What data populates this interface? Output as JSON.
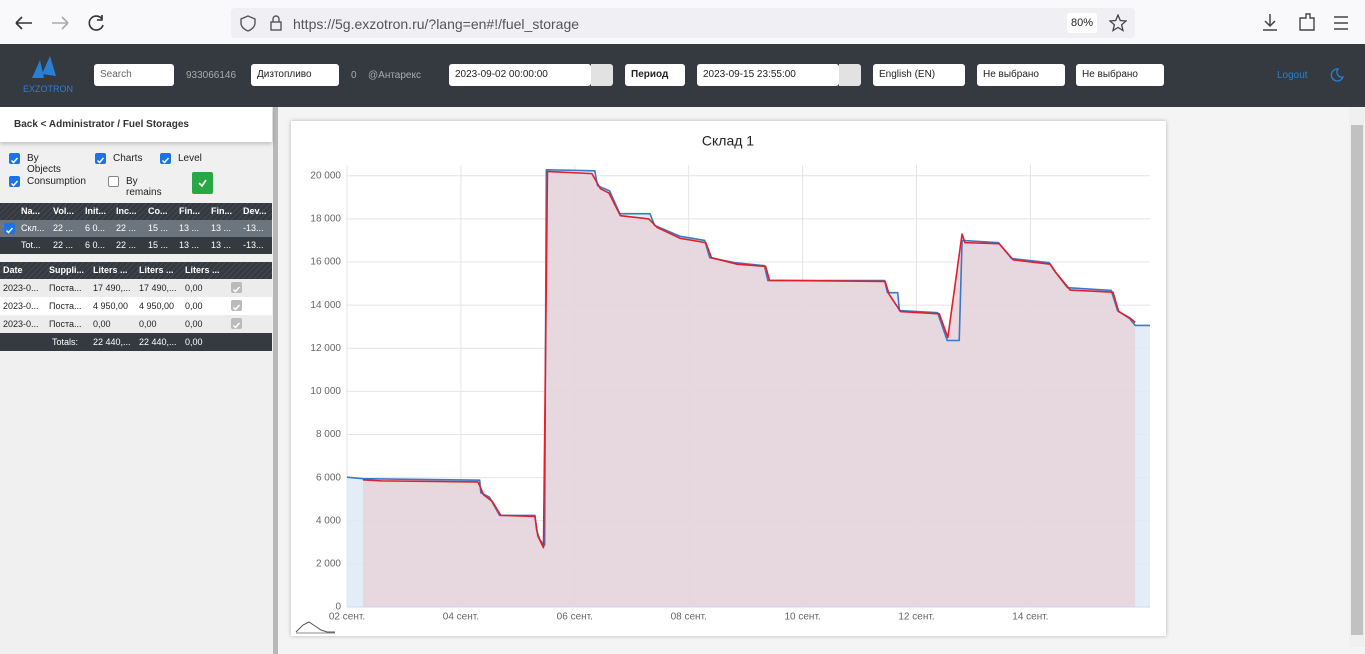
{
  "browser": {
    "url": "https://5g.exzotron.ru/?lang=en#!/fuel_storage",
    "zoom": "80%"
  },
  "navbar": {
    "logo": "EXZOTRON",
    "search_placeholder": "Search",
    "account": "933066146",
    "fuel_select": "Дизтопливо",
    "count": "0",
    "company": "@Антарекс",
    "date_from": "2023-09-02 00:00:00",
    "period": "Период",
    "date_to": "2023-09-15 23:55:00",
    "language": "English (EN)",
    "select1": "Не выбрано",
    "select2": "Не выбрано",
    "logout": "Logout"
  },
  "sidebar": {
    "breadcrumb": "Back < Administrator / Fuel Storages",
    "options": [
      {
        "label": "By Objects",
        "checked": true
      },
      {
        "label": "Charts",
        "checked": true
      },
      {
        "label": "Level",
        "checked": true
      },
      {
        "label": "Consumption",
        "checked": true
      },
      {
        "label": "By remains",
        "checked": false
      }
    ],
    "table1": {
      "headers": [
        "Na...",
        "Vol...",
        "Init...",
        "Inc...",
        "Co...",
        "Fin...",
        "Fin...",
        "Dev..."
      ],
      "rows": [
        [
          "Скл...",
          "22 ...",
          "6 0...",
          "22 ...",
          "15 ...",
          "13 ...",
          "13 ...",
          "-13..."
        ]
      ],
      "totals": [
        "Tot...",
        "22 ...",
        "6 0...",
        "22 ...",
        "15 ...",
        "13 ...",
        "13 ...",
        "-13..."
      ]
    },
    "table2": {
      "headers": [
        "Date",
        "Suppli...",
        "Liters ...",
        "Liters ...",
        "Liters ..."
      ],
      "rows": [
        [
          "2023-0...",
          "Поста...",
          "17 490,...",
          "17 490,...",
          "0,00"
        ],
        [
          "2023-0...",
          "Поста...",
          "4 950,00",
          "4 950,00",
          "0,00"
        ],
        [
          "2023-0...",
          "Поста...",
          "0,00",
          "0,00",
          "0,00"
        ]
      ],
      "totals": [
        "Totals:",
        "22 440,...",
        "22 440,...",
        "0,00"
      ]
    }
  },
  "chart_data": {
    "type": "area",
    "title": "Склад 1",
    "xlim": [
      2,
      16.1
    ],
    "xticks": [
      {
        "value": 2,
        "label": "02 сент."
      },
      {
        "value": 4,
        "label": "04 сент."
      },
      {
        "value": 6,
        "label": "06 сент."
      },
      {
        "value": 8,
        "label": "08 сент."
      },
      {
        "value": 10,
        "label": "10 сент."
      },
      {
        "value": 12,
        "label": "12 сент."
      },
      {
        "value": 14,
        "label": "14 сент."
      }
    ],
    "ylim": [
      0,
      20500
    ],
    "yticks": [
      0,
      {
        "value": 2000,
        "label": "2 000"
      },
      {
        "value": 4000,
        "label": "4 000"
      },
      {
        "value": 6000,
        "label": "6 000"
      },
      {
        "value": 8000,
        "label": "8 000"
      },
      {
        "value": 10000,
        "label": "10 000"
      },
      {
        "value": 12000,
        "label": "12 000"
      },
      {
        "value": 14000,
        "label": "14 000"
      },
      {
        "value": 16000,
        "label": "16 000"
      },
      {
        "value": 18000,
        "label": "18 000"
      },
      {
        "value": 20000,
        "label": "20 000"
      }
    ],
    "grid": true,
    "series": [
      {
        "color": "#3a78c9",
        "fill": "#deeaf7",
        "x": [
          2.0,
          2.28,
          4.33,
          4.35,
          4.5,
          4.68,
          5.3,
          5.33,
          5.39,
          5.47,
          5.5,
          6.35,
          6.4,
          6.61,
          6.79,
          7.32,
          7.4,
          7.84,
          8.28,
          8.37,
          8.81,
          9.33,
          9.39,
          11.44,
          11.49,
          11.67,
          11.7,
          12.37,
          12.54,
          12.75,
          12.8,
          13.44,
          13.67,
          14.33,
          14.42,
          14.65,
          15.42,
          15.53,
          15.74,
          15.84,
          16.1
        ],
        "values": [
          6020,
          5950,
          5880,
          5300,
          5100,
          4250,
          4250,
          3560,
          3100,
          2870,
          20280,
          20230,
          19540,
          19300,
          18240,
          18240,
          17700,
          17200,
          17000,
          16200,
          15970,
          15830,
          15140,
          15140,
          14580,
          14580,
          13750,
          13650,
          12360,
          12360,
          17000,
          16900,
          16160,
          15970,
          15600,
          14810,
          14680,
          13750,
          13380,
          13060,
          13060
        ]
      },
      {
        "color": "#e0202a",
        "fill": "#e8d2d9",
        "x": [
          2.28,
          2.6,
          4.3,
          4.4,
          4.55,
          4.7,
          5.3,
          5.35,
          5.45,
          5.52,
          6.3,
          6.45,
          6.6,
          6.8,
          7.3,
          7.45,
          7.85,
          8.3,
          8.4,
          8.85,
          9.35,
          9.42,
          11.45,
          11.52,
          11.72,
          12.4,
          12.55,
          12.8,
          12.85,
          13.45,
          13.7,
          14.35,
          14.45,
          14.7,
          15.45,
          15.55,
          15.75,
          15.84
        ],
        "values": [
          5900,
          5850,
          5800,
          5200,
          4900,
          4250,
          4200,
          3300,
          2750,
          20200,
          20100,
          19400,
          19200,
          18150,
          18000,
          17600,
          17100,
          16900,
          16200,
          15900,
          15800,
          15150,
          15100,
          14500,
          13700,
          13600,
          12500,
          17300,
          16900,
          16850,
          16100,
          15900,
          15500,
          14700,
          14600,
          13700,
          13400,
          13200
        ]
      }
    ]
  }
}
